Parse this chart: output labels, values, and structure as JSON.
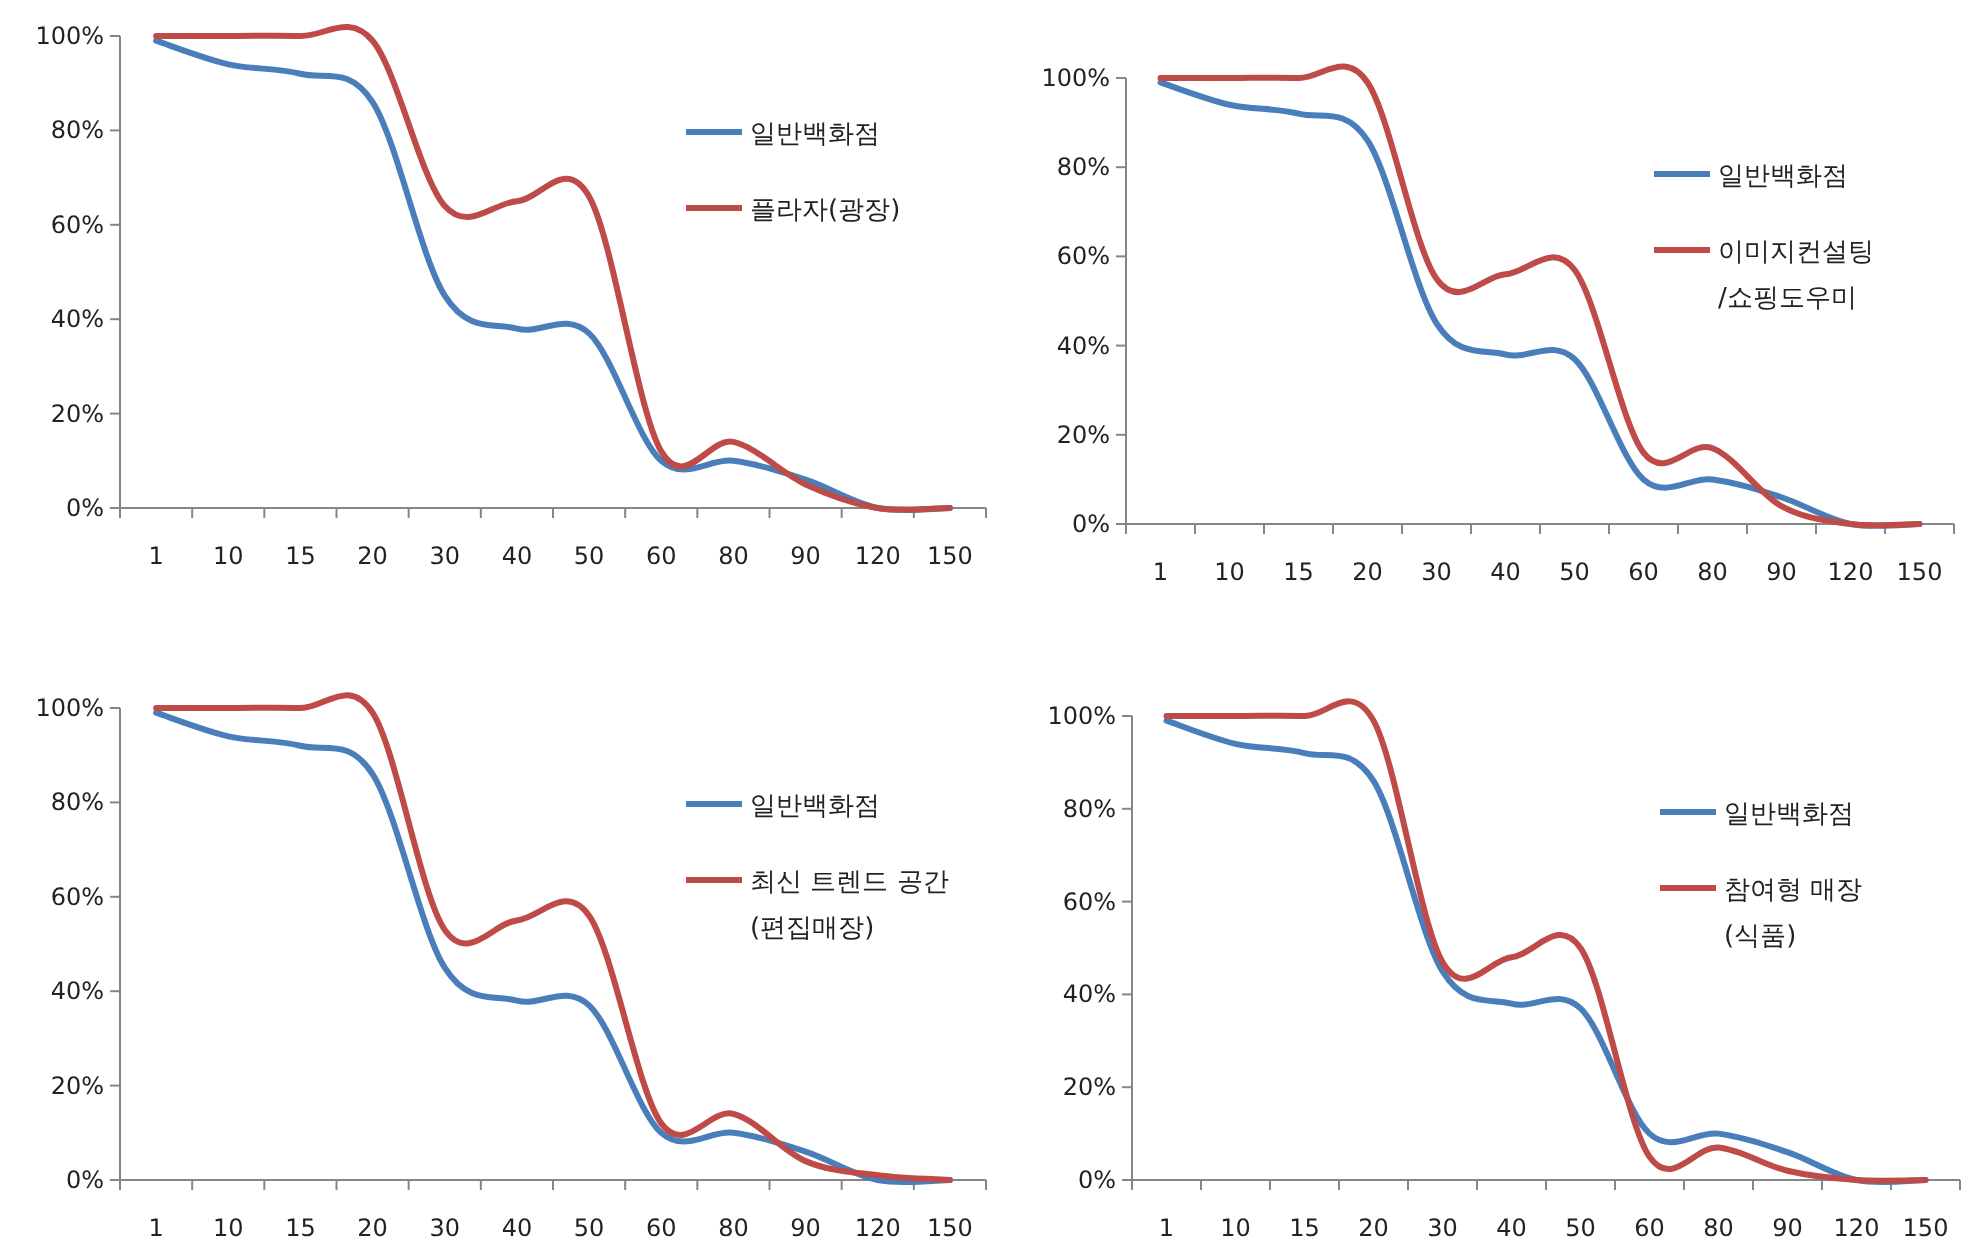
{
  "chart_data": [
    {
      "type": "line",
      "categories": [
        "1",
        "10",
        "15",
        "20",
        "30",
        "40",
        "50",
        "60",
        "80",
        "90",
        "120",
        "150"
      ],
      "ylim": [
        0,
        100
      ],
      "yticks": [
        {
          "value": 0,
          "label": "0%"
        },
        {
          "value": 20,
          "label": "20%"
        },
        {
          "value": 40,
          "label": "40%"
        },
        {
          "value": 60,
          "label": "60%"
        },
        {
          "value": 80,
          "label": "80%"
        },
        {
          "value": 100,
          "label": "100%"
        }
      ],
      "legend": "right",
      "grid": false,
      "marker": "none",
      "line_style": "solid",
      "series": [
        {
          "name": "일반백화점",
          "color": "#4a7ebb",
          "values": [
            99,
            94,
            92,
            86,
            45,
            38,
            37,
            10,
            10,
            6,
            0,
            0
          ]
        },
        {
          "name": "플라자(광장)",
          "color": "#be4b48",
          "values": [
            100,
            100,
            100,
            99,
            64,
            65,
            66,
            12,
            14,
            5,
            0,
            0
          ]
        }
      ]
    },
    {
      "type": "line",
      "categories": [
        "1",
        "10",
        "15",
        "20",
        "30",
        "40",
        "50",
        "60",
        "80",
        "90",
        "120",
        "150"
      ],
      "ylim": [
        0,
        100
      ],
      "yticks": [
        {
          "value": 0,
          "label": "0%"
        },
        {
          "value": 20,
          "label": "20%"
        },
        {
          "value": 40,
          "label": "40%"
        },
        {
          "value": 60,
          "label": "60%"
        },
        {
          "value": 80,
          "label": "80%"
        },
        {
          "value": 100,
          "label": "100%"
        }
      ],
      "legend": "right",
      "grid": false,
      "marker": "none",
      "line_style": "solid",
      "series": [
        {
          "name": "일반백화점",
          "color": "#4a7ebb",
          "values": [
            99,
            94,
            92,
            86,
            45,
            38,
            37,
            10,
            10,
            6,
            0,
            0
          ]
        },
        {
          "name": "이미지컨설팅\n/쇼핑도우미",
          "color": "#be4b48",
          "values": [
            100,
            100,
            100,
            99,
            55,
            56,
            57,
            16,
            17,
            4,
            0,
            0
          ]
        }
      ]
    },
    {
      "type": "line",
      "categories": [
        "1",
        "10",
        "15",
        "20",
        "30",
        "40",
        "50",
        "60",
        "80",
        "90",
        "120",
        "150"
      ],
      "ylim": [
        0,
        100
      ],
      "yticks": [
        {
          "value": 0,
          "label": "0%"
        },
        {
          "value": 20,
          "label": "20%"
        },
        {
          "value": 40,
          "label": "40%"
        },
        {
          "value": 60,
          "label": "60%"
        },
        {
          "value": 80,
          "label": "80%"
        },
        {
          "value": 100,
          "label": "100%"
        }
      ],
      "legend": "right",
      "grid": false,
      "marker": "none",
      "line_style": "solid",
      "series": [
        {
          "name": "일반백화점",
          "color": "#4a7ebb",
          "values": [
            99,
            94,
            92,
            86,
            45,
            38,
            37,
            10,
            10,
            6,
            0,
            0
          ]
        },
        {
          "name": "최신 트렌드 공간\n(편집매장)",
          "color": "#be4b48",
          "values": [
            100,
            100,
            100,
            99,
            53,
            55,
            56,
            12,
            14,
            4,
            1,
            0
          ]
        }
      ]
    },
    {
      "type": "line",
      "categories": [
        "1",
        "10",
        "15",
        "20",
        "30",
        "40",
        "50",
        "60",
        "80",
        "90",
        "120",
        "150"
      ],
      "ylim": [
        0,
        100
      ],
      "yticks": [
        {
          "value": 0,
          "label": "0%"
        },
        {
          "value": 20,
          "label": "20%"
        },
        {
          "value": 40,
          "label": "40%"
        },
        {
          "value": 60,
          "label": "60%"
        },
        {
          "value": 80,
          "label": "80%"
        },
        {
          "value": 100,
          "label": "100%"
        }
      ],
      "legend": "right",
      "grid": false,
      "marker": "none",
      "line_style": "solid",
      "series": [
        {
          "name": "일반백화점",
          "color": "#4a7ebb",
          "values": [
            99,
            94,
            92,
            86,
            45,
            38,
            37,
            10,
            10,
            6,
            0,
            0
          ]
        },
        {
          "name": "참여형 매장\n(식품)",
          "color": "#be4b48",
          "values": [
            100,
            100,
            100,
            99,
            47,
            48,
            50,
            5,
            7,
            2,
            0,
            0
          ]
        }
      ]
    }
  ]
}
